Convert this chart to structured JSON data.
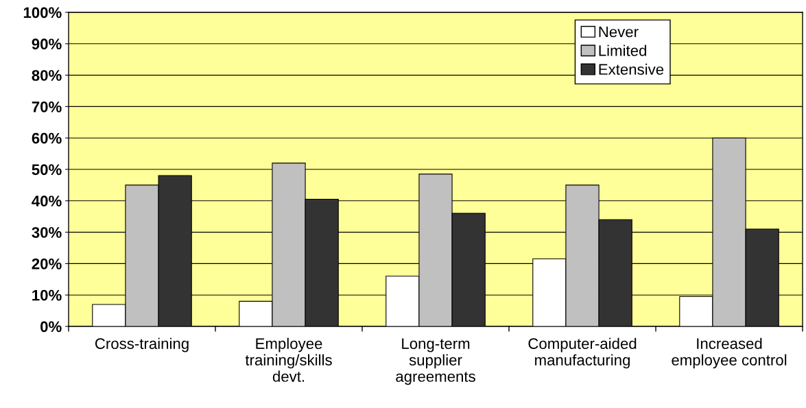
{
  "chart_data": {
    "type": "bar",
    "categories": [
      "Cross-training",
      "Employee\ntraining/skills\ndevt.",
      "Long-term\nsupplier\nagreements",
      "Computer-aided\nmanufacturing",
      "Increased\nemployee control"
    ],
    "series": [
      {
        "name": "Never",
        "color": "#ffffff",
        "values": [
          7,
          8,
          16,
          21.5,
          9.5
        ]
      },
      {
        "name": "Limited",
        "color": "#c0c0c0",
        "values": [
          45,
          52,
          48.5,
          45,
          60
        ]
      },
      {
        "name": "Extensive",
        "color": "#333333",
        "values": [
          48,
          40.5,
          36,
          34,
          31
        ]
      }
    ],
    "ylim": [
      0,
      100
    ],
    "yticks": [
      {
        "value": 0,
        "label": "0%"
      },
      {
        "value": 10,
        "label": "10%"
      },
      {
        "value": 20,
        "label": "20%"
      },
      {
        "value": 30,
        "label": "30%"
      },
      {
        "value": 40,
        "label": "40%"
      },
      {
        "value": 50,
        "label": "50%"
      },
      {
        "value": 60,
        "label": "60%"
      },
      {
        "value": 70,
        "label": "70%"
      },
      {
        "value": 80,
        "label": "80%"
      },
      {
        "value": 90,
        "label": "90%"
      },
      {
        "value": 100,
        "label": "100%"
      }
    ],
    "grid": "y",
    "legend": "top right"
  }
}
